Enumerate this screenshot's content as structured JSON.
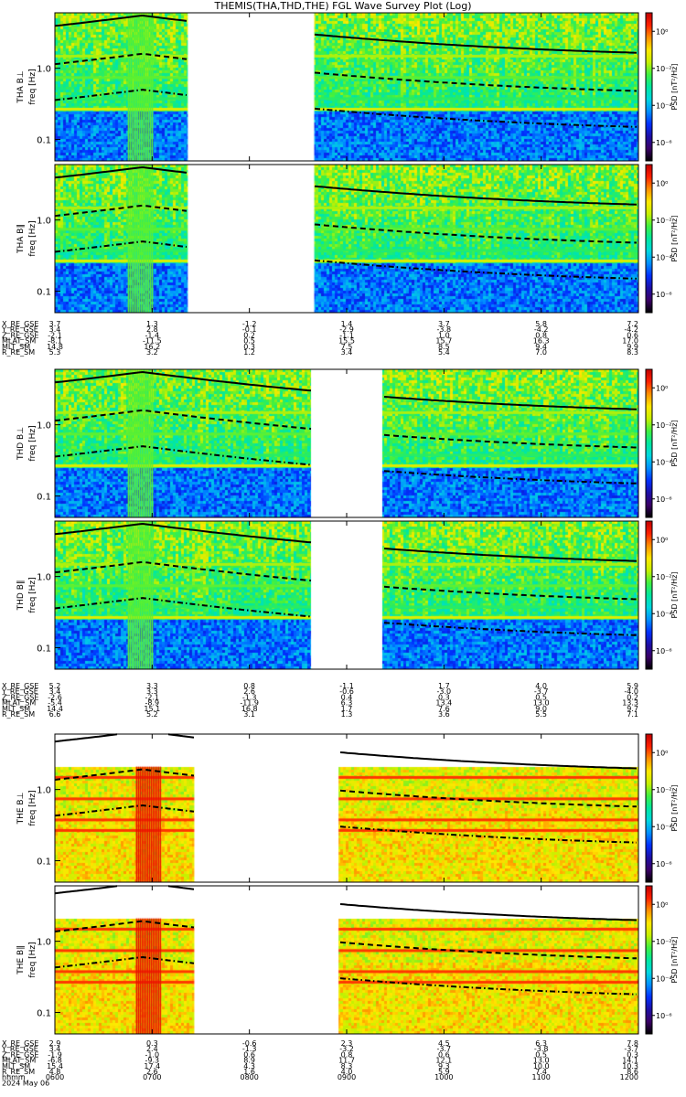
{
  "title": "THEMIS(THA,THD,THE) FGL Wave Survey Plot (Log)",
  "colors": {
    "colormap": [
      "#000000",
      "#3a0066",
      "#1d0fa6",
      "#0030ff",
      "#0090ff",
      "#00d8e0",
      "#00e8a0",
      "#40f040",
      "#c8f000",
      "#ffe800",
      "#ff9000",
      "#ff2000",
      "#c00000"
    ],
    "background": "#ffffff",
    "curve": "#000000"
  },
  "colorbar": {
    "label": "PSD [nT²/Hz]",
    "tick_labels": [
      "10⁰",
      "10⁻²",
      "10⁻⁴",
      "10⁻⁶"
    ],
    "log_range": [
      -7,
      1
    ]
  },
  "chart_data": {
    "type": "heatmap",
    "x_scale": "time",
    "y_scale": "log",
    "ylim": [
      0.05,
      6
    ],
    "y_ticks": [
      "1.0",
      "0.1"
    ],
    "time_range": [
      "0600",
      "1200"
    ],
    "panels": [
      {
        "probe": "THA",
        "component": "B⊥",
        "ylabel": "THA B⊥",
        "yunit": "freq [Hz]",
        "gaps": [
          [
            "0722",
            "0840"
          ]
        ],
        "style": "tha"
      },
      {
        "probe": "THA",
        "component": "B∥",
        "ylabel": "THA B∥",
        "yunit": "freq [Hz]",
        "gaps": [
          [
            "0722",
            "0840"
          ]
        ],
        "style": "tha"
      },
      {
        "probe": "THD",
        "component": "B⊥",
        "ylabel": "THD B⊥",
        "yunit": "freq [Hz]",
        "gaps": [
          [
            "0838",
            "0922"
          ]
        ],
        "style": "thd"
      },
      {
        "probe": "THD",
        "component": "B∥",
        "ylabel": "THD B∥",
        "yunit": "freq [Hz]",
        "gaps": [
          [
            "0838",
            "0922"
          ]
        ],
        "style": "thd"
      },
      {
        "probe": "THE",
        "component": "B⊥",
        "ylabel": "THE B⊥",
        "yunit": "freq [Hz]",
        "gaps": [
          [
            "0726",
            "0855"
          ]
        ],
        "style": "the"
      },
      {
        "probe": "THE",
        "component": "B∥",
        "ylabel": "THE B∥",
        "yunit": "freq [Hz]",
        "gaps": [
          [
            "0726",
            "0855"
          ]
        ],
        "style": "the"
      }
    ],
    "ephemeris": [
      {
        "probe": "THA",
        "rows": [
          {
            "label": "X_RE_GSE",
            "values": [
              "3.7",
              "1.3",
              "-1.2",
              "1.4",
              "3.7",
              "5.8",
              "7.2"
            ]
          },
          {
            "label": "Y_RE_GSE",
            "values": [
              "3.4",
              "2.8",
              "-0.1",
              "-2.9",
              "-3.8",
              "-4.2",
              "-4.2"
            ]
          },
          {
            "label": "Z_RE_GSE",
            "values": [
              "-2.1",
              "-1.4",
              "0.2",
              "-1.1",
              "1.0",
              "0.8",
              "0.6"
            ]
          },
          {
            "label": "MLAT_SM",
            "values": [
              "-8.1",
              "-11.5",
              "0.5",
              "15.5",
              "15.7",
              "16.3",
              "17.0"
            ]
          },
          {
            "label": "MLT_SM",
            "values": [
              "14.8",
              "16.2",
              "0.3",
              "7.5",
              "8.5",
              "9.4",
              "9.9"
            ]
          },
          {
            "label": "R_RE_SM",
            "values": [
              "5.3",
              "3.2",
              "1.2",
              "3.4",
              "5.4",
              "7.0",
              "8.3"
            ]
          }
        ]
      },
      {
        "probe": "THD",
        "rows": [
          {
            "label": "X_RE_GSE",
            "values": [
              "5.2",
              "3.3",
              "0.8",
              "-1.1",
              "1.7",
              "4.0",
              "5.9"
            ]
          },
          {
            "label": "Y_RE_GSE",
            "values": [
              "3.4",
              "3.3",
              "2.6",
              "-0.6",
              "-3.0",
              "-3.7",
              "-4.0"
            ]
          },
          {
            "label": "Z_RE_GSE",
            "values": [
              "-2.6",
              "-2.1",
              "-1.3",
              "0.4",
              "0.3",
              "0.5",
              "0.2"
            ]
          },
          {
            "label": "MLAT_SM",
            "values": [
              "-5.4",
              "-8.9",
              "-11.9",
              "6.3",
              "13.4",
              "13.0",
              "13.3"
            ]
          },
          {
            "label": "MLT_SM",
            "values": [
              "14.4",
              "15.1",
              "16.8",
              "1.7",
              "7.6",
              "9.0",
              "9.7"
            ]
          },
          {
            "label": "R_RE_SM",
            "values": [
              "6.6",
              "5.2",
              "3.1",
              "1.3",
              "3.6",
              "5.5",
              "7.1"
            ]
          }
        ]
      },
      {
        "probe": "THE",
        "rows": [
          {
            "label": "X_RE_GSE",
            "values": [
              "2.9",
              "0.3",
              "-0.6",
              "2.3",
              "4.5",
              "6.3",
              "7.8"
            ]
          },
          {
            "label": "Y_RE_GSE",
            "values": [
              "3.4",
              "2.4",
              "-1.3",
              "-3.2",
              "-3.7",
              "-3.8",
              "-3.7"
            ]
          },
          {
            "label": "Z_RE_GSE",
            "values": [
              "-1.9",
              "-1.0",
              "0.6",
              "0.8",
              "0.6",
              "0.5",
              "0.3"
            ]
          },
          {
            "label": "MLAT_SM",
            "values": [
              "-6.8",
              "-9.3",
              "8.9",
              "11.7",
              "12.1",
              "13.0",
              "14.1"
            ]
          },
          {
            "label": "MLT_SM",
            "values": [
              "15.4",
              "17.4",
              "4.3",
              "8.3",
              "9.3",
              "10.0",
              "10.3"
            ]
          },
          {
            "label": "R_RE_SM",
            "values": [
              "4.8",
              "2.6",
              "1.6",
              "4.0",
              "5.9",
              "7.4",
              "8.6"
            ]
          }
        ]
      }
    ],
    "time_axis": {
      "label": "hhmm",
      "date": "2024 May 06",
      "ticks": [
        "0600",
        "0700",
        "0800",
        "0900",
        "1000",
        "1100",
        "1200"
      ]
    }
  }
}
